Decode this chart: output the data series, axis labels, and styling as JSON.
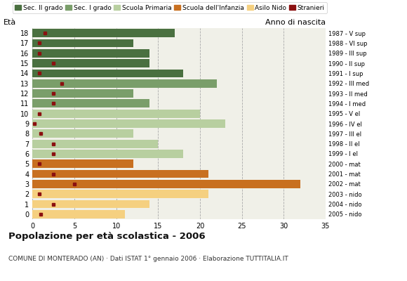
{
  "ages": [
    18,
    17,
    16,
    15,
    14,
    13,
    12,
    11,
    10,
    9,
    8,
    7,
    6,
    5,
    4,
    3,
    2,
    1,
    0
  ],
  "values": [
    17,
    12,
    14,
    14,
    18,
    22,
    12,
    14,
    20,
    23,
    12,
    15,
    18,
    12,
    21,
    32,
    21,
    14,
    11
  ],
  "stranieri": [
    1.5,
    0.8,
    0.8,
    2.5,
    0.8,
    3.5,
    2.5,
    2.5,
    0.8,
    0.2,
    1.0,
    2.5,
    2.5,
    0.8,
    2.5,
    5.0,
    0.8,
    2.5,
    1.0
  ],
  "categories": [
    "Sec. II grado",
    "Sec. II grado",
    "Sec. II grado",
    "Sec. II grado",
    "Sec. II grado",
    "Sec. I grado",
    "Sec. I grado",
    "Sec. I grado",
    "Scuola Primaria",
    "Scuola Primaria",
    "Scuola Primaria",
    "Scuola Primaria",
    "Scuola Primaria",
    "Scuola dell'Infanzia",
    "Scuola dell'Infanzia",
    "Scuola dell'Infanzia",
    "Asilo Nido",
    "Asilo Nido",
    "Asilo Nido"
  ],
  "anno_nascita": [
    "1987 - V sup",
    "1988 - VI sup",
    "1989 - III sup",
    "1990 - II sup",
    "1991 - I sup",
    "1992 - III med",
    "1993 - II med",
    "1994 - I med",
    "1995 - V el",
    "1996 - IV el",
    "1997 - III el",
    "1998 - II el",
    "1999 - I el",
    "2000 - mat",
    "2001 - mat",
    "2002 - mat",
    "2003 - nido",
    "2004 - nido",
    "2005 - nido"
  ],
  "colors": {
    "Sec. II grado": "#4a7040",
    "Sec. I grado": "#7a9e6a",
    "Scuola Primaria": "#b8cfa0",
    "Scuola dell'Infanzia": "#c87020",
    "Asilo Nido": "#f5d080"
  },
  "stranieri_color": "#8b1010",
  "title": "Popolazione per età scolastica - 2006",
  "subtitle": "COMUNE DI MONTERADO (AN) · Dati ISTAT 1° gennaio 2006 · Elaborazione TUTTITALIA.IT",
  "label_eta": "Età",
  "label_anno": "Anno di nascita",
  "xlim": [
    0,
    35
  ],
  "xticks": [
    0,
    5,
    10,
    15,
    20,
    25,
    30,
    35
  ],
  "background_color": "#ffffff",
  "plot_bg_color": "#f0f0e8",
  "legend_order": [
    "Sec. II grado",
    "Sec. I grado",
    "Scuola Primaria",
    "Scuola dell'Infanzia",
    "Asilo Nido",
    "Stranieri"
  ]
}
